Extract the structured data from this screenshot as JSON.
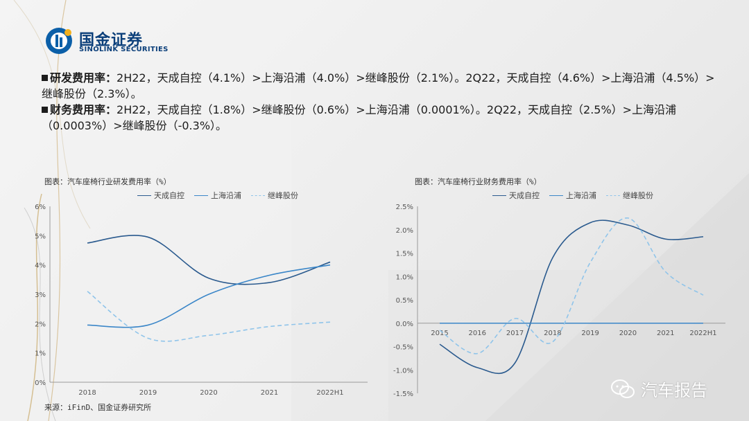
{
  "colors": {
    "tiancheng": "#2a5a8e",
    "shanghai": "#3a86c8",
    "jifeng": "#8fc4ea",
    "logo_blue": "#0b3f7a",
    "axis_text": "#555555"
  },
  "header": {
    "logo_cn": "国金证券",
    "logo_en": "SINOLINK SECURITIES"
  },
  "bullets": [
    {
      "label": "研发费用率：",
      "text": "2H22，天成自控（4.1%）>上海沿浦（4.0%）>继峰股份（2.1%）。2Q22，天成自控（4.6%）>上海沿浦（4.5%）>继峰股份（2.3%）。"
    },
    {
      "label": "财务费用率：",
      "text": "2H22，天成自控（1.8%）>继峰股份（0.6%）>上海沿浦（0.0001%）。2Q22，天成自控（2.5%）>上海沿浦（0.0003%）>继峰股份（-0.3%）。"
    }
  ],
  "source": "来源：iFinD、国金证券研究所",
  "watermark": "汽车报告",
  "chart_data": [
    {
      "type": "line",
      "title": "图表：汽车座椅行业研发费用率（%）",
      "categories": [
        "2018",
        "2019",
        "2020",
        "2021",
        "2022H1"
      ],
      "y_ticks": [
        "0%",
        "1%",
        "2%",
        "3%",
        "4%",
        "5%",
        "6%"
      ],
      "ylim": [
        0,
        6
      ],
      "grid": false,
      "legend_position": "top",
      "series": [
        {
          "name": "天成自控",
          "style": "solid",
          "values": [
            4.75,
            4.95,
            3.55,
            3.4,
            4.1
          ]
        },
        {
          "name": "上海沿浦",
          "style": "solid",
          "values": [
            1.95,
            1.95,
            3.0,
            3.65,
            4.0
          ]
        },
        {
          "name": "继峰股份",
          "style": "dashed",
          "values": [
            3.1,
            1.5,
            1.6,
            1.9,
            2.05
          ]
        }
      ]
    },
    {
      "type": "line",
      "title": "图表：汽车座椅行业财务费用率（%）",
      "categories": [
        "2015",
        "2016",
        "2017",
        "2018",
        "2019",
        "2020",
        "2021",
        "2022H1"
      ],
      "y_ticks": [
        "-1.5%",
        "-1.0%",
        "-0.5%",
        "0.0%",
        "0.5%",
        "1.0%",
        "1.5%",
        "2.0%",
        "2.5%"
      ],
      "ylim": [
        -1.5,
        2.5
      ],
      "grid": false,
      "legend_position": "top",
      "series": [
        {
          "name": "天成自控",
          "style": "solid",
          "values": [
            -0.45,
            -0.95,
            -0.85,
            1.4,
            2.15,
            2.1,
            1.8,
            1.85
          ]
        },
        {
          "name": "上海沿浦",
          "style": "solid",
          "values": [
            0.0,
            0.0,
            0.0,
            0.0,
            0.0,
            0.0,
            0.0,
            0.0
          ]
        },
        {
          "name": "继峰股份",
          "style": "dashed",
          "values": [
            -0.15,
            -0.65,
            0.1,
            -0.4,
            1.3,
            2.25,
            1.1,
            0.6
          ]
        }
      ]
    }
  ]
}
